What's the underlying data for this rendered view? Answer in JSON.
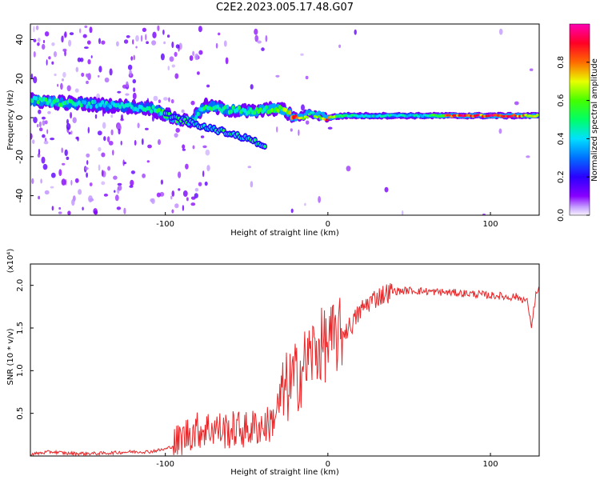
{
  "title": "C2E2.2023.005.17.48.G07",
  "chart_data": [
    {
      "type": "heatmap",
      "xlabel": "Height of straight line (km)",
      "ylabel": "Frequency (Hz)",
      "xlim": [
        -183,
        130
      ],
      "ylim": [
        -50,
        48
      ],
      "xticks": [
        -100,
        0,
        100
      ],
      "yticks": [
        -40,
        -20,
        0,
        20,
        40
      ],
      "grid": false,
      "colorbar": {
        "label": "Normalized spectral amplitude",
        "range": [
          0,
          1
        ],
        "ticks": [
          "0.0",
          "0.2",
          "0.4",
          "0.6",
          "0.8"
        ],
        "tick_values": [
          0.0,
          0.2,
          0.4,
          0.6,
          0.8
        ],
        "colormap": "rainbow (purple-blue-cyan-green-yellow-red-magenta)"
      },
      "ridge": {
        "description": "dominant frequency trace, amplitude along trace",
        "points": [
          {
            "x": -183,
            "y": 9,
            "amp": 0.5
          },
          {
            "x": -170,
            "y": 8,
            "amp": 0.55
          },
          {
            "x": -150,
            "y": 7,
            "amp": 0.45
          },
          {
            "x": -130,
            "y": 6,
            "amp": 0.45
          },
          {
            "x": -110,
            "y": 5,
            "amp": 0.45
          },
          {
            "x": -95,
            "y": 0,
            "amp": 0.6
          },
          {
            "x": -85,
            "y": -2,
            "amp": 0.5
          },
          {
            "x": -75,
            "y": 6,
            "amp": 0.5
          },
          {
            "x": -60,
            "y": 4,
            "amp": 0.5
          },
          {
            "x": -45,
            "y": 3,
            "amp": 0.55
          },
          {
            "x": -30,
            "y": 5,
            "amp": 0.6
          },
          {
            "x": -20,
            "y": 0,
            "amp": 0.9
          },
          {
            "x": -10,
            "y": 2,
            "amp": 0.5
          },
          {
            "x": 0,
            "y": 0,
            "amp": 0.9
          },
          {
            "x": 10,
            "y": 1,
            "amp": 0.5
          },
          {
            "x": 30,
            "y": 1,
            "amp": 0.45
          },
          {
            "x": 60,
            "y": 1,
            "amp": 0.45
          },
          {
            "x": 80,
            "y": 1,
            "amp": 0.95
          },
          {
            "x": 100,
            "y": 1,
            "amp": 0.9
          },
          {
            "x": 115,
            "y": 1,
            "amp": 0.95
          },
          {
            "x": 130,
            "y": 1,
            "amp": 0.6
          }
        ],
        "secondary_branch": [
          {
            "x": -100,
            "y": 2
          },
          {
            "x": -80,
            "y": -4
          },
          {
            "x": -60,
            "y": -8
          },
          {
            "x": -45,
            "y": -12
          },
          {
            "x": -38,
            "y": -16
          }
        ]
      }
    },
    {
      "type": "line",
      "xlabel": "Height of straight line (km)",
      "ylabel": "SNR (10 * v/v)",
      "y_multiplier": "(x10⁴)",
      "xlim": [
        -183,
        130
      ],
      "ylim": [
        0,
        2.25
      ],
      "xticks": [
        -100,
        0,
        100
      ],
      "yticks": [
        0.5,
        1.0,
        1.5,
        2.0
      ],
      "ytick_labels": [
        "0.5",
        "1.0",
        "1.5",
        "2.0"
      ],
      "grid": false,
      "series": [
        {
          "color": "#e8282a",
          "x": [
            -183,
            -170,
            -160,
            -150,
            -140,
            -130,
            -120,
            -110,
            -100,
            -95,
            -90,
            -85,
            -80,
            -75,
            -70,
            -65,
            -60,
            -55,
            -50,
            -45,
            -40,
            -35,
            -30,
            -25,
            -20,
            -15,
            -10,
            -5,
            0,
            5,
            10,
            15,
            20,
            25,
            30,
            35,
            40,
            50,
            60,
            70,
            80,
            90,
            100,
            105,
            110,
            115,
            120,
            123,
            125,
            128,
            130
          ],
          "values": [
            0.02,
            0.05,
            0.03,
            0.03,
            0.03,
            0.04,
            0.05,
            0.05,
            0.08,
            0.12,
            0.2,
            0.28,
            0.3,
            0.32,
            0.33,
            0.3,
            0.3,
            0.32,
            0.3,
            0.34,
            0.35,
            0.38,
            0.6,
            0.8,
            0.9,
            1.05,
            1.2,
            1.28,
            1.32,
            1.38,
            1.45,
            1.55,
            1.7,
            1.8,
            1.86,
            1.9,
            1.93,
            1.94,
            1.93,
            1.92,
            1.91,
            1.9,
            1.88,
            1.88,
            1.86,
            1.87,
            1.84,
            1.8,
            1.5,
            1.9,
            1.95
          ]
        }
      ]
    }
  ]
}
